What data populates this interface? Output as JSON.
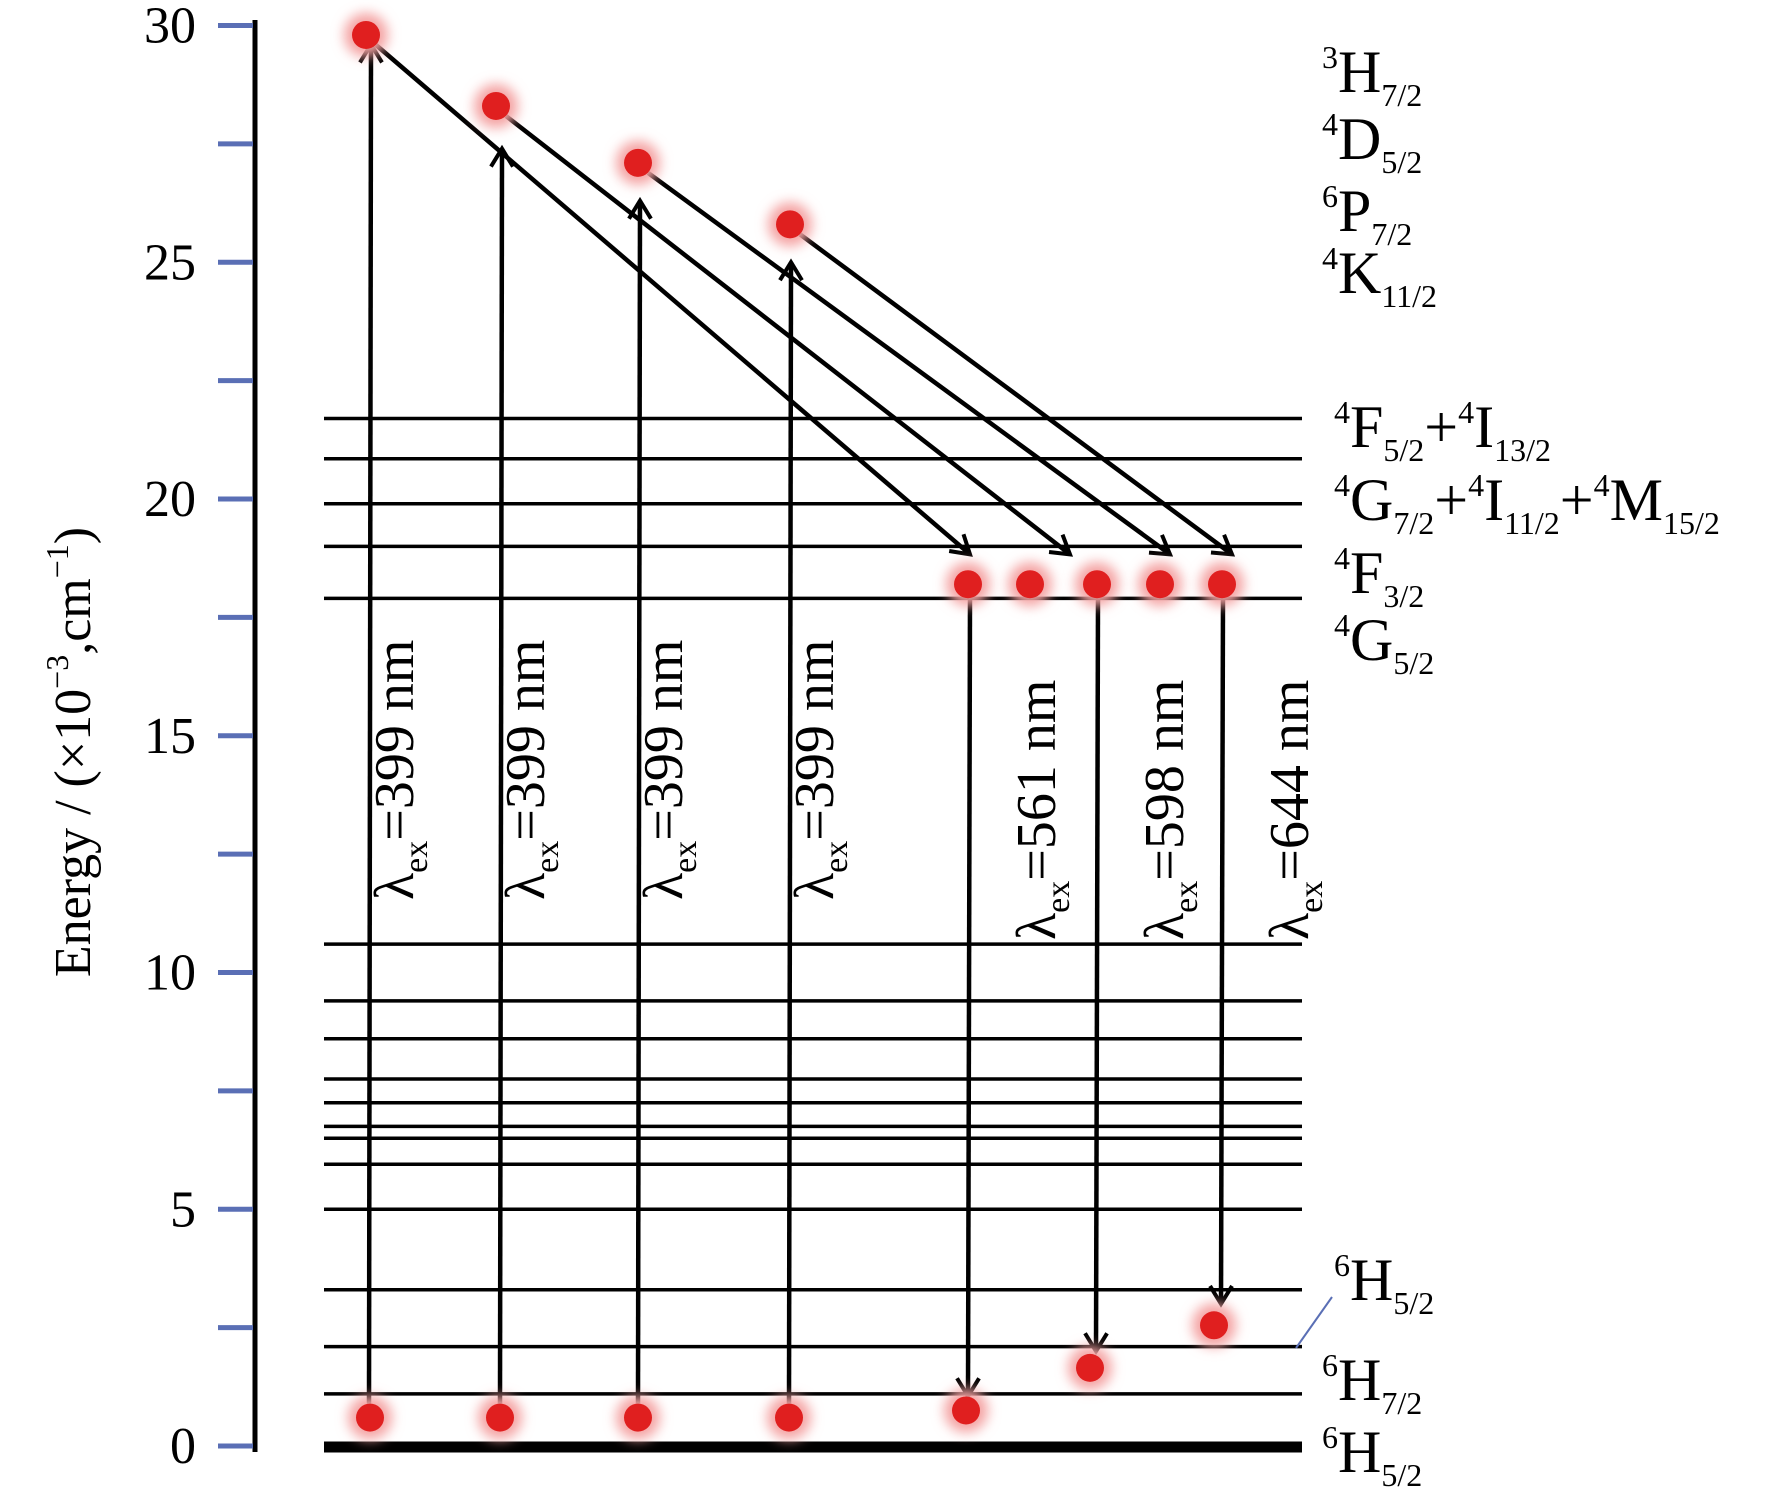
{
  "axis": {
    "label_main": "Energy / (×10",
    "label_exp": "−3",
    "label_unit": ",cm",
    "label_unit_exp": "−1",
    "label_close": ")",
    "ticks": [
      {
        "value": 0,
        "label": "0"
      },
      {
        "value": 5,
        "label": "5"
      },
      {
        "value": 10,
        "label": "10"
      },
      {
        "value": 15,
        "label": "15"
      },
      {
        "value": 20,
        "label": "20"
      },
      {
        "value": 25,
        "label": "25"
      },
      {
        "value": 30,
        "label": "30"
      }
    ],
    "minor_ticks": [
      2.5,
      7.5,
      12.5,
      17.5,
      22.5,
      27.5
    ],
    "tick_color": "#5a6fb5"
  },
  "bands": [
    {
      "energy": 29.2,
      "color": "#7ec5dd"
    },
    {
      "energy": 27.7,
      "color": "#b39cc8"
    },
    {
      "energy": 26.6,
      "color": "#8fa9dc"
    },
    {
      "energy": 25.1,
      "color": "#f0b23f"
    }
  ],
  "levels": [
    0,
    1.1,
    2.1,
    3.3,
    5.0,
    5.95,
    6.5,
    6.75,
    7.25,
    7.75,
    8.6,
    9.4,
    10.6,
    17.9,
    19.0,
    19.9,
    20.85,
    21.7
  ],
  "state_labels": [
    {
      "base": "H",
      "sup": "3",
      "sub": "7/2"
    },
    {
      "base": "D",
      "sup": "4",
      "sub": "5/2"
    },
    {
      "base": "P",
      "sup": "6",
      "sub": "7/2"
    },
    {
      "base": "K",
      "sup": "4",
      "sub": "11/2"
    },
    {
      "parts": [
        {
          "base": "F",
          "sup": "4",
          "sub": "5/2"
        },
        {
          "base": "I",
          "sup": "4",
          "sub": "13/2"
        }
      ]
    },
    {
      "parts": [
        {
          "base": "G",
          "sup": "4",
          "sub": "7/2"
        },
        {
          "base": "I",
          "sup": "4",
          "sub": "11/2"
        },
        {
          "base": "M",
          "sup": "4",
          "sub": "15/2"
        }
      ]
    },
    {
      "base": "F",
      "sup": "4",
      "sub": "3/2"
    },
    {
      "base": "G",
      "sup": "4",
      "sub": "5/2"
    },
    {
      "base": "H",
      "sup": "6",
      "sub": "5/2"
    },
    {
      "base": "H",
      "sup": "6",
      "sub": "7/2"
    },
    {
      "base": "H",
      "sup": "6",
      "sub": "5/2"
    }
  ],
  "excitations": [
    {
      "from": 0.6,
      "to": 29.6,
      "end": 29.8,
      "label_sym": "λ",
      "label_sub": "ex",
      "label_val": "=399 nm"
    },
    {
      "from": 0.6,
      "to": 27.4,
      "end": 28.3,
      "label_sym": "λ",
      "label_sub": "ex",
      "label_val": "=399 nm"
    },
    {
      "from": 0.6,
      "to": 26.3,
      "end": 27.1,
      "label_sym": "λ",
      "label_sub": "ex",
      "label_val": "=399 nm"
    },
    {
      "from": 0.6,
      "to": 25.0,
      "end": 25.8,
      "label_sym": "λ",
      "label_sub": "ex",
      "label_val": "=399 nm"
    }
  ],
  "relaxations": [
    {
      "from": 29.8,
      "to": 19.0
    },
    {
      "from": 28.3,
      "to": 19.0
    },
    {
      "from": 27.1,
      "to": 19.0
    },
    {
      "from": 25.8,
      "to": 19.0
    }
  ],
  "emissions": [
    {
      "from": 18.2,
      "to": 1.2,
      "label_sym": "λ",
      "label_sub": "ex",
      "label_val": "=561 nm"
    },
    {
      "from": 18.2,
      "to": 2.1,
      "label_sym": "λ",
      "label_sub": "ex",
      "label_val": "=598 nm"
    },
    {
      "from": 18.2,
      "to": 3.0,
      "label_sym": "λ",
      "label_sub": "ex",
      "label_val": "=644 nm"
    }
  ],
  "dot_color": "#e01f1f",
  "glow_color": "#f4a3a3"
}
